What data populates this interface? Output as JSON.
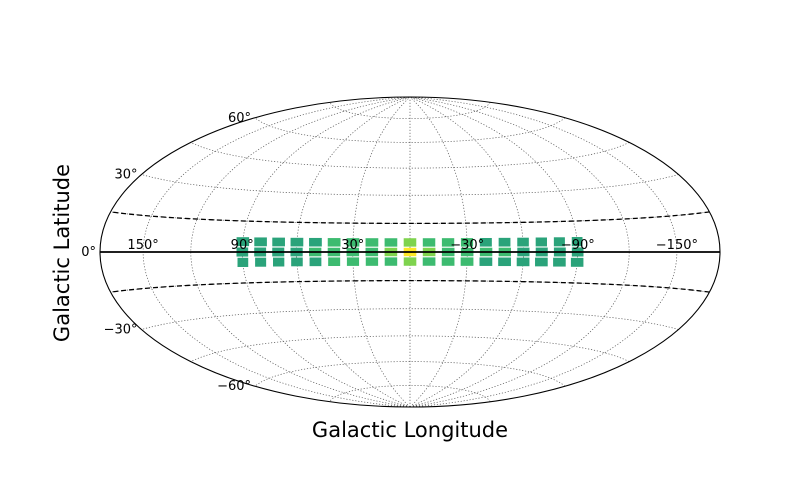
{
  "chart_data": {
    "type": "heatmap",
    "projection": "hammer",
    "xlabel": "Galactic Longitude",
    "ylabel": "Galactic Latitude",
    "lon_tick_labels": [
      {
        "lon": 150,
        "label": "150°"
      },
      {
        "lon": 90,
        "label": "90°"
      },
      {
        "lon": 30,
        "label": "30°"
      },
      {
        "lon": -30,
        "label": "−30°"
      },
      {
        "lon": -90,
        "label": "−90°"
      },
      {
        "lon": -150,
        "label": "−150°"
      }
    ],
    "lat_tick_labels": [
      {
        "lat": 60,
        "label": "60°"
      },
      {
        "lat": 30,
        "label": "30°"
      },
      {
        "lat": 0,
        "label": "0°"
      },
      {
        "lat": -30,
        "label": "−30°"
      },
      {
        "lat": -60,
        "label": "−60°"
      }
    ],
    "grid": true,
    "galactic_plane_boundaries_lat": [
      15,
      -15
    ],
    "colors": {
      "low": "#2aa37a",
      "mid": "#3dbb70",
      "high": "#7fd34e",
      "max": "#fde725"
    },
    "tiles_lon": [
      90,
      80,
      70,
      60,
      50,
      40,
      30,
      20,
      10,
      0,
      -10,
      -20,
      -30,
      -40,
      -50,
      -60,
      -70,
      -80,
      -90
    ],
    "tiles_lat": [
      5,
      0,
      -5
    ],
    "values": [
      [
        0.35,
        0.4,
        0.35
      ],
      [
        0.35,
        0.4,
        0.35
      ],
      [
        0.35,
        0.4,
        0.35
      ],
      [
        0.35,
        0.4,
        0.35
      ],
      [
        0.4,
        0.45,
        0.4
      ],
      [
        0.45,
        0.5,
        0.45
      ],
      [
        0.5,
        0.55,
        0.5
      ],
      [
        0.55,
        0.6,
        0.55
      ],
      [
        0.6,
        0.7,
        0.6
      ],
      [
        0.75,
        1.0,
        0.75
      ],
      [
        0.6,
        0.7,
        0.6
      ],
      [
        0.55,
        0.6,
        0.55
      ],
      [
        0.45,
        0.5,
        0.45
      ],
      [
        0.4,
        0.45,
        0.4
      ],
      [
        0.4,
        0.45,
        0.4
      ],
      [
        0.35,
        0.4,
        0.35
      ],
      [
        0.35,
        0.4,
        0.35
      ],
      [
        0.35,
        0.4,
        0.35
      ],
      [
        0.35,
        0.4,
        0.35
      ]
    ]
  }
}
